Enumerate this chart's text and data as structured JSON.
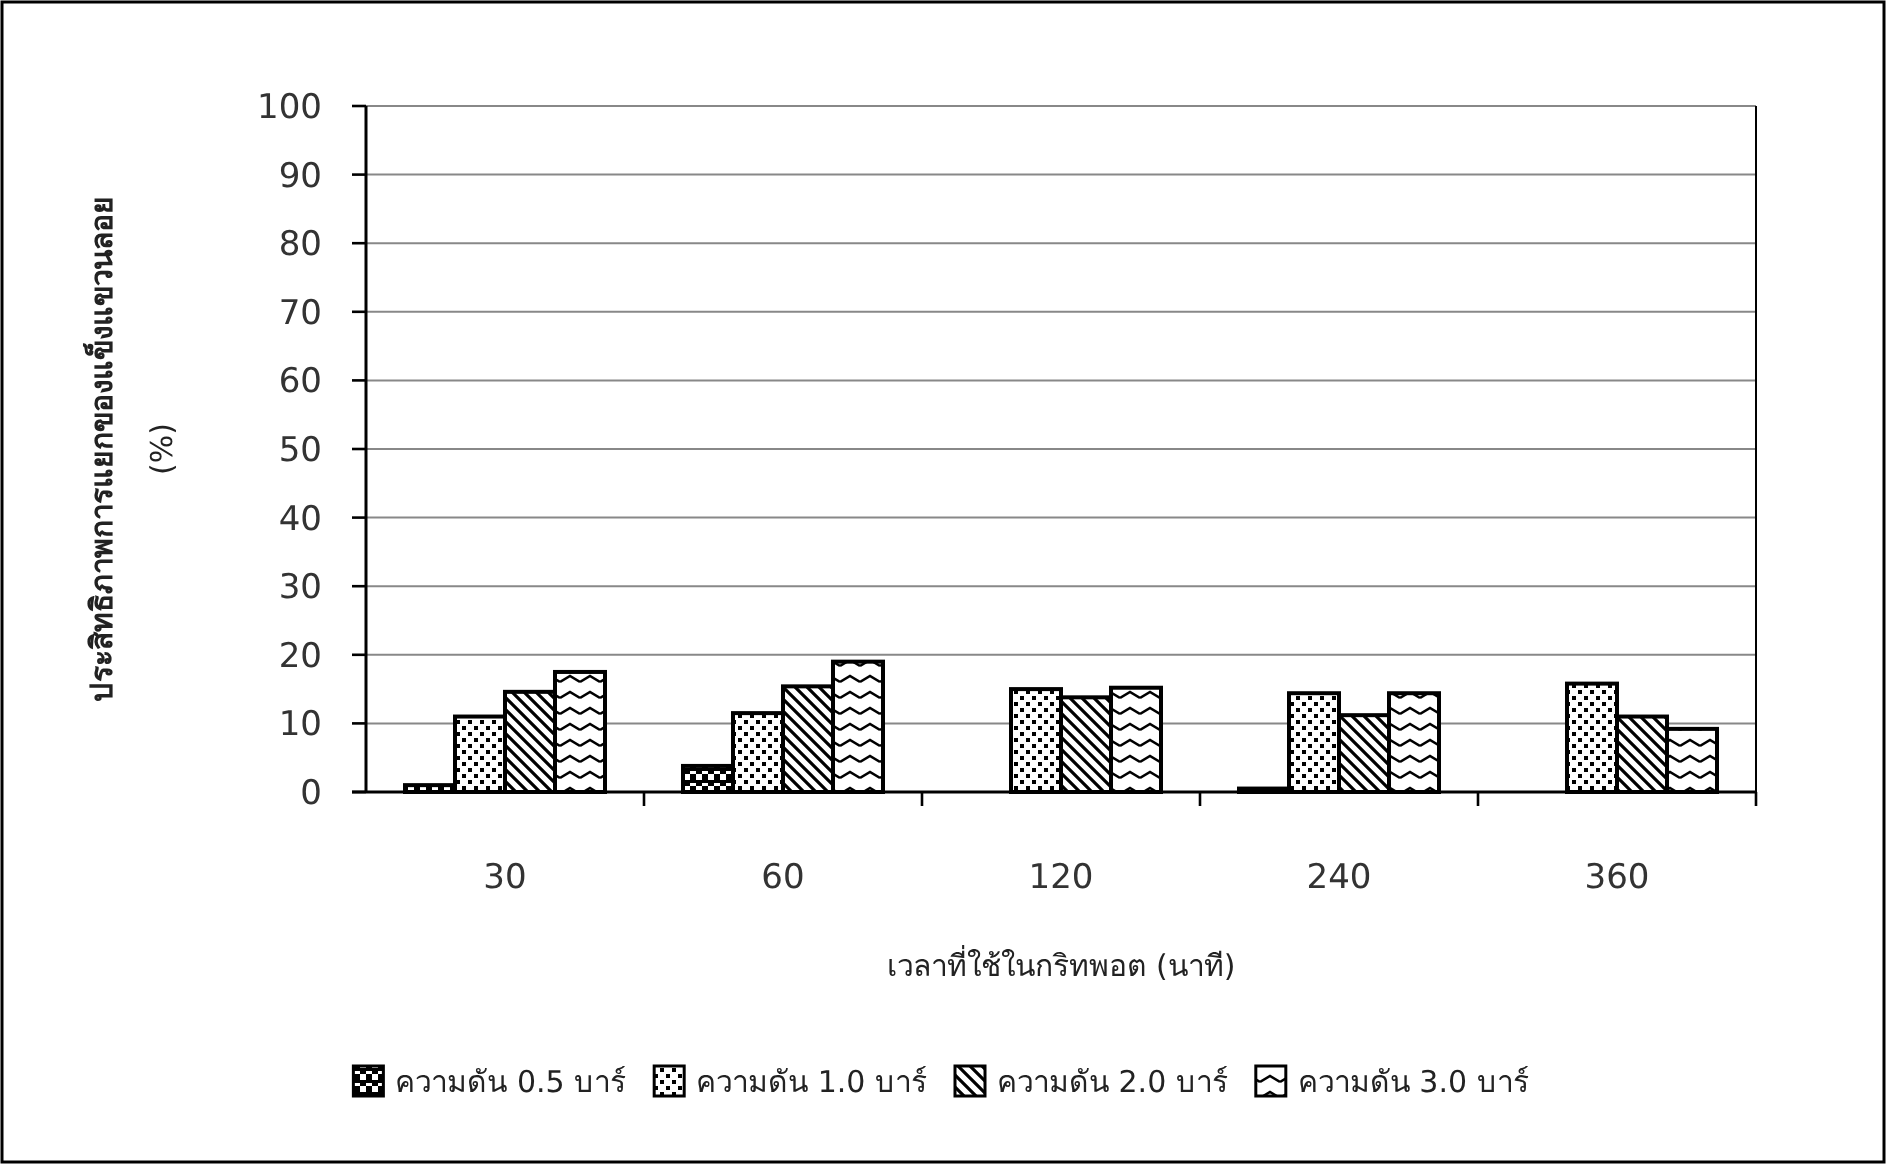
{
  "chart_data": {
    "type": "bar",
    "xlabel": "เวลาที่ใช้ในกริทพอต (นาที)",
    "ylabel": "ประสิทธิภาพการแยกของแข็งแขวนลอย\n(%)",
    "categories": [
      "30",
      "60",
      "120",
      "240",
      "360"
    ],
    "series": [
      {
        "name": "ความดัน 0.5 บาร์",
        "color": "#000000",
        "values": [
          1.0,
          3.8,
          0,
          0.5,
          0
        ]
      },
      {
        "name": "ความดัน 1.0 บาร์",
        "color": "#000000",
        "values": [
          11,
          11.5,
          15,
          14.4,
          15.8
        ]
      },
      {
        "name": "ความดัน 2.0 บาร์",
        "color": "#000000",
        "values": [
          14.6,
          15.4,
          13.8,
          11.2,
          11
        ]
      },
      {
        "name": "ความดัน 3.0 บาร์",
        "color": "#000000",
        "values": [
          17.5,
          19,
          15.2,
          14.4,
          9.2
        ]
      }
    ],
    "ylim": [
      0,
      100
    ],
    "yticks": [
      0,
      10,
      20,
      30,
      40,
      50,
      60,
      70,
      80,
      90,
      100
    ],
    "grid": "y",
    "legend": "bottom"
  }
}
